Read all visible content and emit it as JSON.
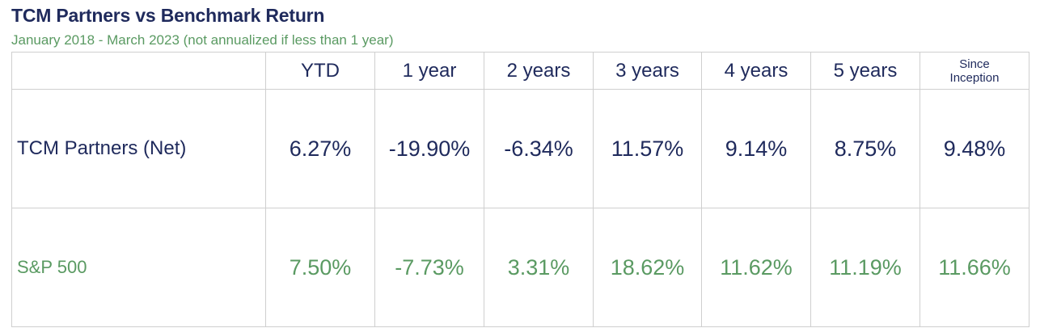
{
  "title": "TCM Partners vs Benchmark Return",
  "subtitle": "January 2018 - March 2023 (not annualized if less than 1 year)",
  "colors": {
    "navy": "#1f2a5c",
    "green": "#5a9a62",
    "border": "#cfcfcf"
  },
  "chart_data": {
    "type": "table",
    "title": "TCM Partners vs Benchmark Return",
    "subtitle": "January 2018 - March 2023 (not annualized if less than 1 year)",
    "columns": [
      "",
      "YTD",
      "1 year",
      "2 years",
      "3 years",
      "4 years",
      "5 years",
      "Since Inception"
    ],
    "column_labels": {
      "since_line1": "Since",
      "since_line2": "Inception"
    },
    "rows": [
      {
        "name": "TCM Partners (Net)",
        "values": [
          "6.27%",
          "-19.90%",
          "-6.34%",
          "11.57%",
          "9.14%",
          "8.75%",
          "9.48%"
        ]
      },
      {
        "name": "S&P 500",
        "values": [
          "7.50%",
          "-7.73%",
          "3.31%",
          "18.62%",
          "11.62%",
          "11.19%",
          "11.66%"
        ]
      }
    ]
  }
}
